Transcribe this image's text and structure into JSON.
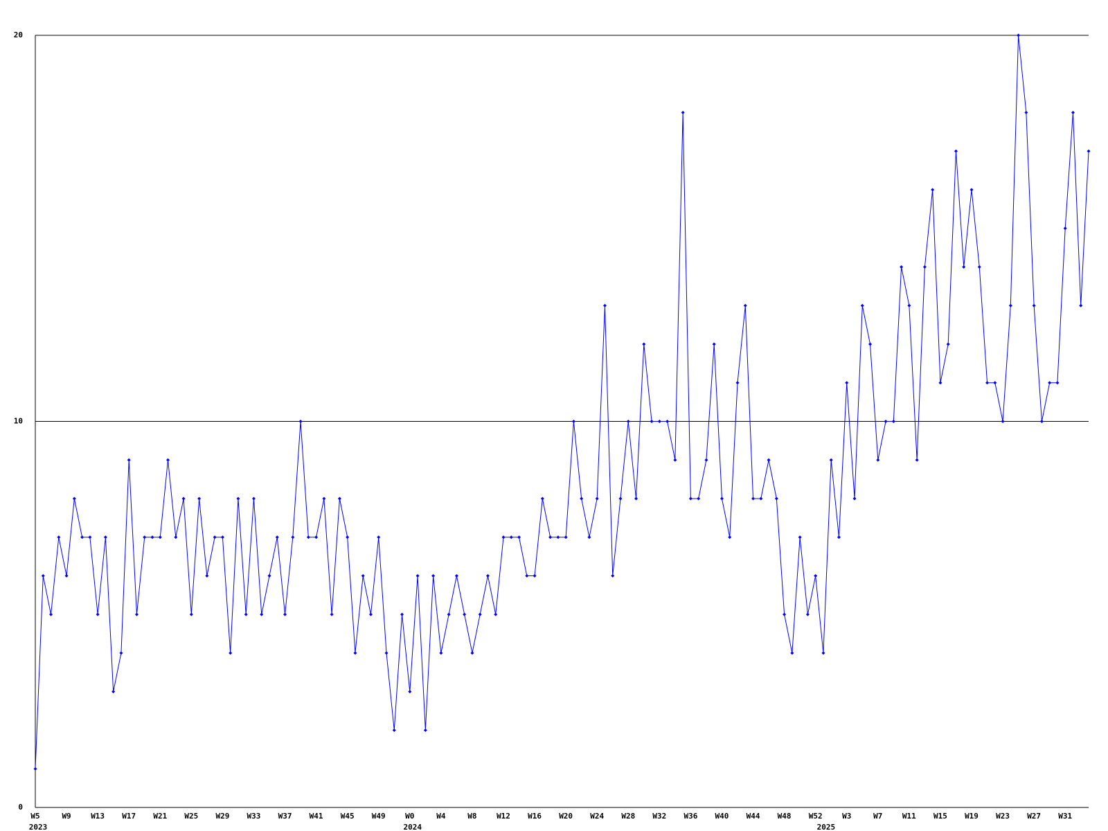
{
  "chart_data": {
    "type": "line",
    "categories": [
      "W5",
      null,
      null,
      null,
      "W9",
      null,
      null,
      null,
      "W13",
      null,
      null,
      null,
      "W17",
      null,
      null,
      null,
      "W21",
      null,
      null,
      null,
      "W25",
      null,
      null,
      null,
      "W29",
      null,
      null,
      null,
      "W33",
      null,
      null,
      null,
      "W37",
      null,
      null,
      null,
      "W41",
      null,
      null,
      null,
      "W45",
      null,
      null,
      null,
      "W49",
      null,
      null,
      null,
      "W0",
      null,
      null,
      null,
      "W4",
      null,
      null,
      null,
      "W8",
      null,
      null,
      null,
      "W12",
      null,
      null,
      null,
      "W16",
      null,
      null,
      null,
      "W20",
      null,
      null,
      null,
      "W24",
      null,
      null,
      null,
      "W28",
      null,
      null,
      null,
      "W32",
      null,
      null,
      null,
      "W36",
      null,
      null,
      null,
      "W40",
      null,
      null,
      null,
      "W44",
      null,
      null,
      null,
      "W48",
      null,
      null,
      null,
      "W52",
      null,
      null,
      null,
      "W3",
      null,
      null,
      null,
      "W7",
      null,
      null,
      null,
      "W11",
      null,
      null,
      null,
      "W15",
      null,
      null,
      null,
      "W19",
      null,
      null,
      null,
      "W23",
      null,
      null,
      null,
      "W27",
      null,
      null,
      null,
      "W31",
      null,
      null,
      null
    ],
    "years": [
      {
        "label": "2023",
        "category": 0
      },
      {
        "label": "2024",
        "category": 48
      },
      {
        "label": "2025",
        "category": 101
      }
    ],
    "series": [
      {
        "color": "#0000ff",
        "values": [
          1,
          6,
          5,
          7,
          6,
          8,
          7,
          7,
          5,
          7,
          3,
          4,
          9,
          5,
          7,
          7,
          7,
          9,
          7,
          8,
          5,
          8,
          6,
          7,
          7,
          4,
          8,
          5,
          8,
          5,
          6,
          7,
          5,
          7,
          10,
          7,
          7,
          8,
          5,
          8,
          7,
          4,
          6,
          5,
          7,
          4,
          2,
          5,
          3,
          6,
          2,
          6,
          4,
          5,
          6,
          5,
          4,
          5,
          6,
          5,
          7,
          7,
          7,
          6,
          6,
          8,
          7,
          7,
          7,
          10,
          8,
          7,
          8,
          13,
          6,
          8,
          10,
          8,
          12,
          10,
          10,
          10,
          9,
          18,
          8,
          8,
          9,
          12,
          8,
          7,
          11,
          13,
          8,
          8,
          9,
          8,
          5,
          4,
          7,
          5,
          6,
          4,
          9,
          7,
          11,
          8,
          13,
          12,
          9,
          10,
          10,
          14,
          13,
          9,
          14,
          16,
          11,
          12,
          17,
          14,
          16,
          14,
          11,
          11,
          10,
          13,
          20,
          18,
          13,
          10,
          11,
          11,
          15,
          18,
          13,
          17
        ]
      }
    ],
    "ylim": [
      0,
      20
    ],
    "yticks": [
      0,
      10,
      20
    ],
    "grid": true
  }
}
